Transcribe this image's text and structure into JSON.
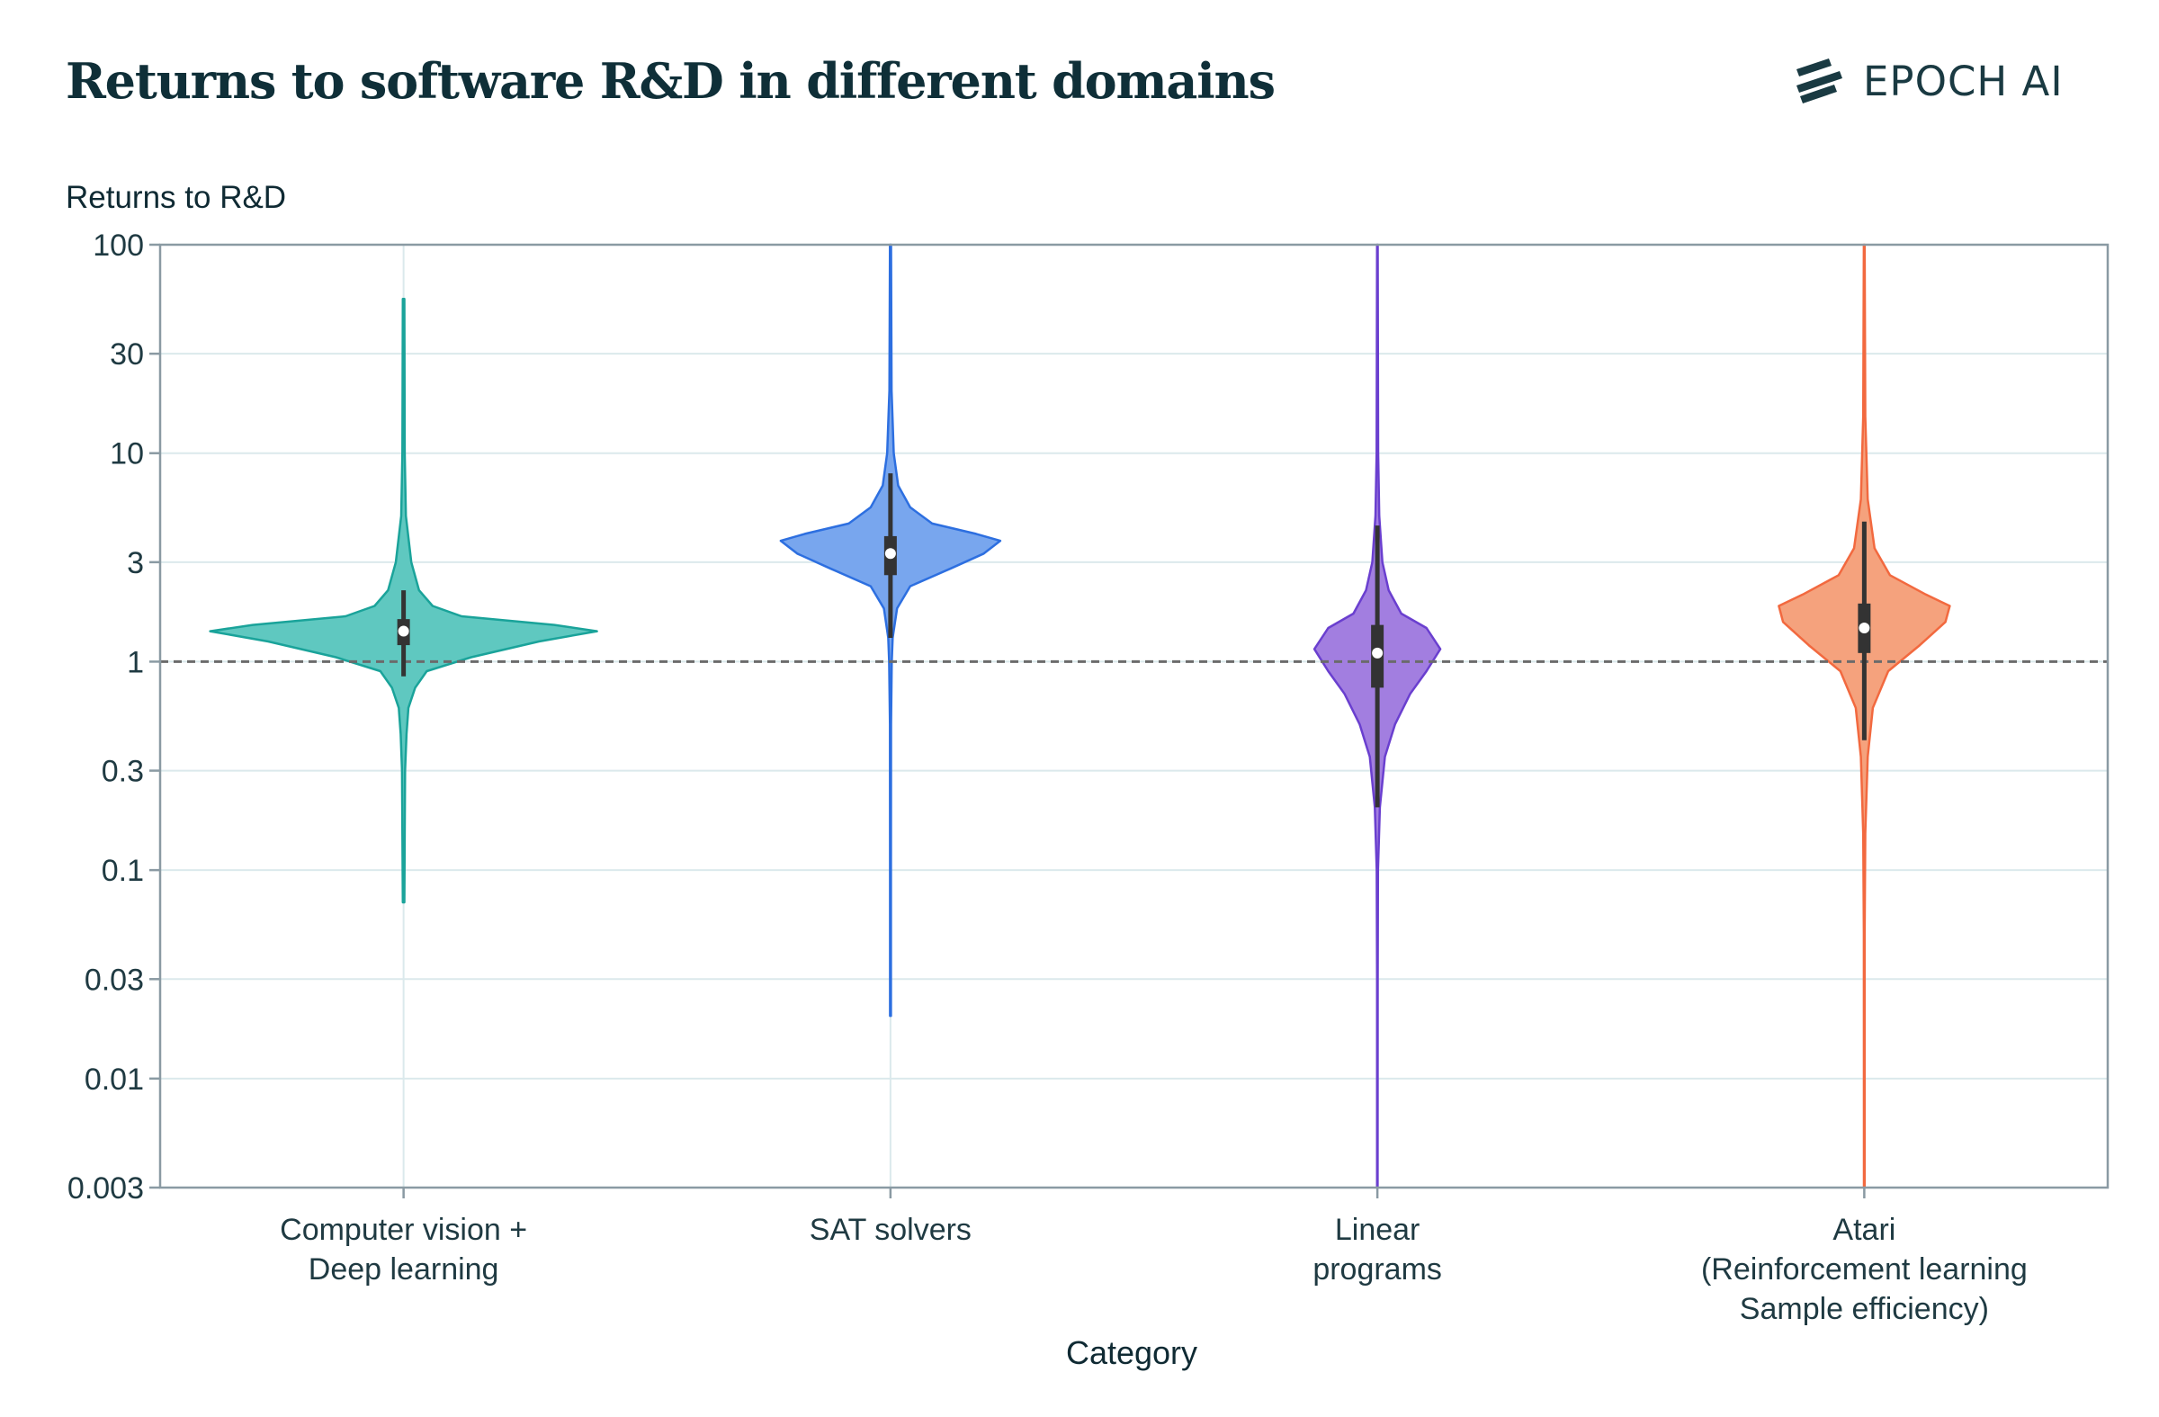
{
  "header": {
    "title": "Returns to software R&D in different domains",
    "brand": "EPOCH AI"
  },
  "colors": {
    "brand": "#1a3a42",
    "grid": "#dbe9ec",
    "axis": "#8a9aa3",
    "reference_line": "#6b6b6b",
    "box": "#333333"
  },
  "chart_data": {
    "type": "violin",
    "ylabel": "Returns to R&D",
    "xlabel": "Category",
    "yscale": "log",
    "ylim": [
      0.003,
      100
    ],
    "yticks": [
      100,
      30,
      10,
      3,
      1,
      0.3,
      0.1,
      0.03,
      0.01,
      0.003
    ],
    "ytick_labels": [
      "100",
      "30",
      "10",
      "3",
      "1",
      "0.3",
      "0.1",
      "0.03",
      "0.01",
      "0.003"
    ],
    "grid": true,
    "reference_line": 1,
    "categories": [
      [
        "Computer vision +",
        "Deep learning"
      ],
      [
        "SAT solvers"
      ],
      [
        "Linear",
        "programs"
      ],
      [
        "Atari",
        "(Reinforcement learning",
        "Sample efficiency)"
      ]
    ],
    "series": [
      {
        "color": "#1aa39a",
        "fill": "#5fc8c0",
        "median": 1.4,
        "q1": 1.2,
        "q3": 1.6,
        "whisker_low": 0.85,
        "whisker_high": 2.2,
        "min": 0.07,
        "max": 55,
        "density": [
          [
            0.07,
            0.004
          ],
          [
            0.15,
            0.006
          ],
          [
            0.3,
            0.008
          ],
          [
            0.45,
            0.015
          ],
          [
            0.6,
            0.025
          ],
          [
            0.75,
            0.06
          ],
          [
            0.9,
            0.12
          ],
          [
            1.05,
            0.35
          ],
          [
            1.25,
            0.7
          ],
          [
            1.4,
            1.0
          ],
          [
            1.5,
            0.78
          ],
          [
            1.65,
            0.3
          ],
          [
            1.85,
            0.15
          ],
          [
            2.2,
            0.08
          ],
          [
            3,
            0.04
          ],
          [
            5,
            0.012
          ],
          [
            10,
            0.006
          ],
          [
            55,
            0.004
          ]
        ]
      },
      {
        "color": "#2d6fe0",
        "fill": "#78a6ee",
        "median": 3.3,
        "q1": 2.6,
        "q3": 4.0,
        "whisker_low": 1.3,
        "whisker_high": 8.0,
        "min": 0.02,
        "max": 100,
        "density": [
          [
            0.02,
            0.004
          ],
          [
            0.1,
            0.004
          ],
          [
            0.5,
            0.005
          ],
          [
            1.0,
            0.012
          ],
          [
            1.3,
            0.02
          ],
          [
            1.8,
            0.06
          ],
          [
            2.3,
            0.18
          ],
          [
            2.8,
            0.55
          ],
          [
            3.3,
            0.85
          ],
          [
            3.8,
            1.0
          ],
          [
            4.1,
            0.78
          ],
          [
            4.6,
            0.38
          ],
          [
            5.5,
            0.18
          ],
          [
            7,
            0.07
          ],
          [
            10,
            0.03
          ],
          [
            20,
            0.01
          ],
          [
            100,
            0.005
          ]
        ]
      },
      {
        "color": "#6a3fcf",
        "fill": "#a27ee0",
        "median": 1.1,
        "q1": 0.75,
        "q3": 1.5,
        "whisker_low": 0.2,
        "whisker_high": 4.5,
        "min": 0.003,
        "max": 100,
        "density": [
          [
            0.003,
            0.004
          ],
          [
            0.03,
            0.005
          ],
          [
            0.1,
            0.01
          ],
          [
            0.2,
            0.04
          ],
          [
            0.35,
            0.12
          ],
          [
            0.5,
            0.28
          ],
          [
            0.7,
            0.52
          ],
          [
            0.9,
            0.78
          ],
          [
            1.15,
            1.0
          ],
          [
            1.45,
            0.78
          ],
          [
            1.7,
            0.38
          ],
          [
            2.2,
            0.18
          ],
          [
            3,
            0.08
          ],
          [
            5,
            0.03
          ],
          [
            10,
            0.012
          ],
          [
            100,
            0.005
          ]
        ]
      },
      {
        "color": "#f2693f",
        "fill": "#f5a27d",
        "median": 1.45,
        "q1": 1.1,
        "q3": 1.9,
        "whisker_low": 0.42,
        "whisker_high": 4.7,
        "min": 0.003,
        "max": 100,
        "density": [
          [
            0.003,
            0.004
          ],
          [
            0.05,
            0.005
          ],
          [
            0.15,
            0.012
          ],
          [
            0.35,
            0.04
          ],
          [
            0.6,
            0.1
          ],
          [
            0.9,
            0.28
          ],
          [
            1.2,
            0.65
          ],
          [
            1.55,
            0.95
          ],
          [
            1.85,
            1.0
          ],
          [
            2.1,
            0.72
          ],
          [
            2.6,
            0.3
          ],
          [
            3.5,
            0.12
          ],
          [
            6,
            0.04
          ],
          [
            15,
            0.012
          ],
          [
            100,
            0.005
          ]
        ]
      }
    ]
  }
}
